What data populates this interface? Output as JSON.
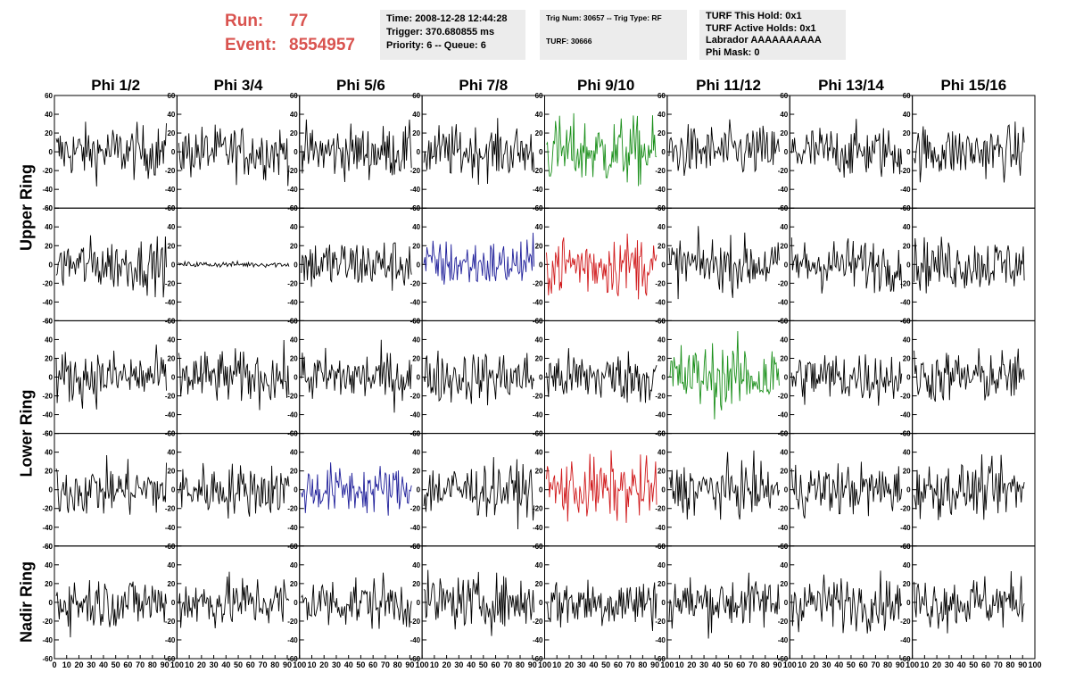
{
  "run": {
    "label": "Run:",
    "value": "77"
  },
  "event": {
    "label": "Event:",
    "value": "8554957"
  },
  "info_time": {
    "time": "Time: 2008-12-28 12:44:28",
    "trigger": "Trigger: 370.680855 ms",
    "priority": "Priority: 6 -- Queue: 6"
  },
  "info_trig": {
    "trig": "Trig Num: 30657 -- Trig Type: RF",
    "turf": "TURF: 30666"
  },
  "info_turf": {
    "hold": "TURF This Hold: 0x1",
    "active": "TURF Active Holds: 0x1",
    "labrador": "Labrador AAAAAAAAAA",
    "phimask": "Phi Mask: 0"
  },
  "columns": [
    "Phi 1/2",
    "Phi 3/4",
    "Phi 5/6",
    "Phi 7/8",
    "Phi 9/10",
    "Phi 11/12",
    "Phi 13/14",
    "Phi 15/16"
  ],
  "ring_labels": [
    "Upper Ring",
    "Lower Ring",
    "Nadir Ring"
  ],
  "axis": {
    "y_ticks": [
      "60",
      "40",
      "20",
      "0",
      "-20",
      "-40",
      "-60"
    ],
    "x_ticks": [
      "0",
      "10",
      "20",
      "30",
      "40",
      "50",
      "60",
      "70",
      "80",
      "90",
      "100"
    ],
    "y_range": [
      -60,
      60
    ],
    "x_range": [
      0,
      100
    ]
  },
  "colors": {
    "default": "#000000",
    "green": "#1a8f1a",
    "blue": "#1f1f9a",
    "red": "#d0191b",
    "title_red": "#d9534f"
  },
  "panels": [
    [
      "black",
      "black",
      "black",
      "black",
      "green",
      "black",
      "black",
      "black"
    ],
    [
      "black",
      "flat",
      "black",
      "blue",
      "red",
      "black",
      "black",
      "black"
    ],
    [
      "black",
      "black",
      "black",
      "black",
      "black",
      "green",
      "black",
      "black"
    ],
    [
      "black",
      "black",
      "blue",
      "black",
      "red",
      "black",
      "black",
      "black"
    ],
    [
      "black",
      "black",
      "black",
      "black",
      "black",
      "black",
      "black",
      "black"
    ]
  ]
}
